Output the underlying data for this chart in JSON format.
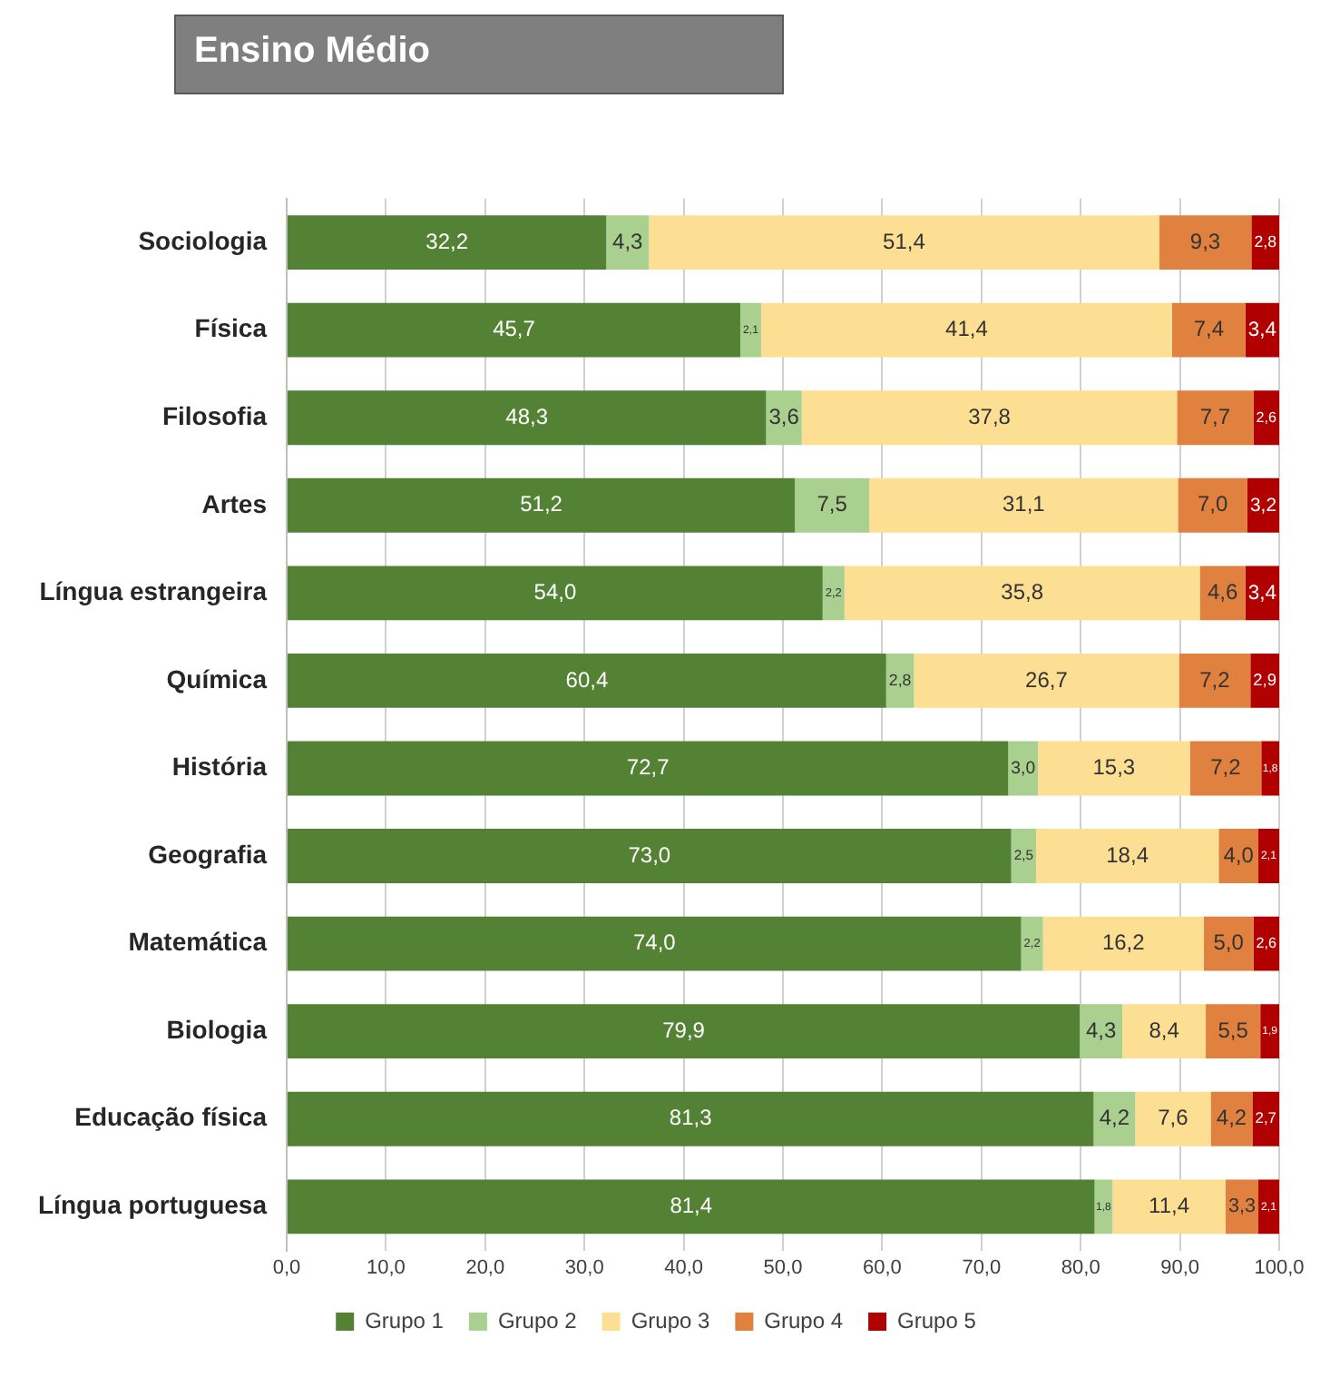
{
  "chart_data": {
    "type": "bar",
    "orientation": "horizontal",
    "stacked": true,
    "title": "Ensino Médio",
    "categories": [
      "Sociologia",
      "Física",
      "Filosofia",
      "Artes",
      "Língua estrangeira",
      "Química",
      "História",
      "Geografia",
      "Matemática",
      "Biologia",
      "Educação física",
      "Língua portuguesa"
    ],
    "series": [
      {
        "name": "Grupo 1",
        "color": "#548235",
        "values": [
          32.2,
          45.7,
          48.3,
          51.2,
          54.0,
          60.4,
          72.7,
          73.0,
          74.0,
          79.9,
          81.3,
          81.4
        ],
        "value_labels": [
          "32,2",
          "45,7",
          "48,3",
          "51,2",
          "54,0",
          "60,4",
          "72,7",
          "73,0",
          "74,0",
          "79,9",
          "81,3",
          "81,4"
        ]
      },
      {
        "name": "Grupo 2",
        "color": "#a9d08e",
        "values": [
          4.3,
          2.1,
          3.6,
          7.5,
          2.2,
          2.8,
          3.0,
          2.5,
          2.2,
          4.3,
          4.2,
          1.8
        ],
        "value_labels": [
          "4,3",
          "2,1",
          "3,6",
          "7,5",
          "2,2",
          "2,8",
          "3,0",
          "2,5",
          "2,2",
          "4,3",
          "4,2",
          "1,8"
        ]
      },
      {
        "name": "Grupo 3",
        "color": "#fddf94",
        "values": [
          51.4,
          41.4,
          37.8,
          31.1,
          35.8,
          26.7,
          15.3,
          18.4,
          16.2,
          8.4,
          7.6,
          11.4
        ],
        "value_labels": [
          "51,4",
          "41,4",
          "37,8",
          "31,1",
          "35,8",
          "26,7",
          "15,3",
          "18,4",
          "16,2",
          "8,4",
          "7,6",
          "11,4"
        ]
      },
      {
        "name": "Grupo 4",
        "color": "#e0813f",
        "values": [
          9.3,
          7.4,
          7.7,
          7.0,
          4.6,
          7.2,
          7.2,
          4.0,
          5.0,
          5.5,
          4.2,
          3.3
        ],
        "value_labels": [
          "9,3",
          "7,4",
          "7,7",
          "7,0",
          "4,6",
          "7,2",
          "7,2",
          "4,0",
          "5,0",
          "5,5",
          "4,2",
          "3,3"
        ]
      },
      {
        "name": "Grupo 5",
        "color": "#b00000",
        "values": [
          2.8,
          3.4,
          2.6,
          3.2,
          3.4,
          2.9,
          1.8,
          2.1,
          2.6,
          1.9,
          2.7,
          2.1
        ],
        "value_labels": [
          "2,8",
          "3,4",
          "2,6",
          "3,2",
          "3,4",
          "2,9",
          "1,8",
          "2,1",
          "2,6",
          "1,9",
          "2,7",
          "2,1"
        ]
      }
    ],
    "xlim": [
      0,
      100
    ],
    "xticks": [
      {
        "value": 0,
        "label": "0,0"
      },
      {
        "value": 10,
        "label": "10,0"
      },
      {
        "value": 20,
        "label": "20,0"
      },
      {
        "value": 30,
        "label": "30,0"
      },
      {
        "value": 40,
        "label": "40,0"
      },
      {
        "value": 50,
        "label": "50,0"
      },
      {
        "value": 60,
        "label": "60,0"
      },
      {
        "value": 70,
        "label": "70,0"
      },
      {
        "value": 80,
        "label": "80,0"
      },
      {
        "value": 90,
        "label": "90,0"
      },
      {
        "value": 100,
        "label": "100,0"
      }
    ],
    "grid": "x",
    "legend": "bottom"
  }
}
